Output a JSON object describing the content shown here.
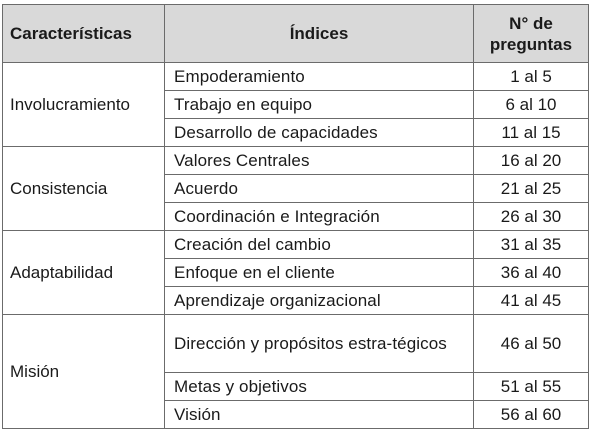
{
  "table": {
    "headers": {
      "caracteristicas": "Características",
      "indices": "Índices",
      "preguntas": "N° de preguntas"
    },
    "groups": [
      {
        "caracteristica": "Involucramiento",
        "rows": [
          {
            "indice": "Empoderamiento",
            "preguntas": "1 al 5"
          },
          {
            "indice": "Trabajo en equipo",
            "preguntas": "6 al 10"
          },
          {
            "indice": "Desarrollo de capacidades",
            "preguntas": "11 al 15"
          }
        ]
      },
      {
        "caracteristica": "Consistencia",
        "rows": [
          {
            "indice": "Valores Centrales",
            "preguntas": "16 al 20"
          },
          {
            "indice": "Acuerdo",
            "preguntas": "21 al 25"
          },
          {
            "indice": "Coordinación e Integración",
            "preguntas": "26 al 30"
          }
        ]
      },
      {
        "caracteristica": "Adaptabilidad",
        "rows": [
          {
            "indice": "Creación del cambio",
            "preguntas": "31 al 35"
          },
          {
            "indice": "Enfoque en el cliente",
            "preguntas": "36 al 40"
          },
          {
            "indice": "Aprendizaje organizacional",
            "preguntas": "41 al 45"
          }
        ]
      },
      {
        "caracteristica": "Misión",
        "rows": [
          {
            "indice": "Dirección y propósitos estra-tégicos",
            "preguntas": "46 al 50"
          },
          {
            "indice": "Metas y objetivos",
            "preguntas": "51 al 55"
          },
          {
            "indice": "Visión",
            "preguntas": "56 al 60"
          }
        ]
      }
    ]
  }
}
